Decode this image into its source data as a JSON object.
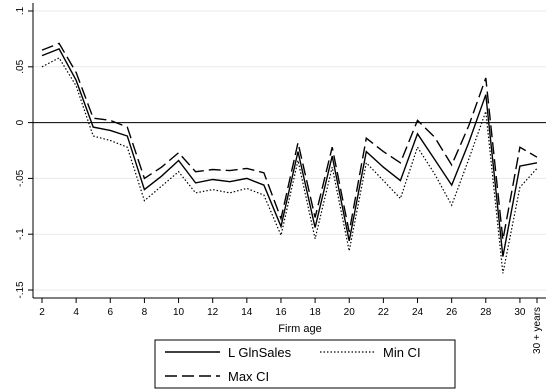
{
  "chart_data": {
    "type": "line",
    "xlabel": "Firm age",
    "ylabel": "",
    "x_ticks": [
      "2",
      "4",
      "6",
      "8",
      "10",
      "12",
      "14",
      "16",
      "18",
      "20",
      "22",
      "24",
      "26",
      "28",
      "30",
      "30 + years"
    ],
    "y_ticks": [
      ".1",
      ".05",
      "0",
      "-.05",
      "-.1",
      "-.15"
    ],
    "y_tick_values": [
      0.1,
      0.05,
      0,
      -0.05,
      -0.1,
      -0.15
    ],
    "ylim": [
      -0.15,
      0.1
    ],
    "grid": true,
    "reference_line_y": 0,
    "legend_placement": "bottom-center",
    "x": [
      2,
      3,
      4,
      5,
      6,
      7,
      8,
      9,
      10,
      11,
      12,
      13,
      14,
      15,
      16,
      17,
      18,
      19,
      20,
      21,
      22,
      23,
      24,
      25,
      26,
      27,
      28,
      29,
      30,
      31
    ],
    "series": [
      {
        "name": "L GlnSales",
        "style": "solid",
        "values": [
          0.06,
          0.066,
          0.038,
          -0.004,
          -0.007,
          -0.012,
          -0.06,
          -0.048,
          -0.034,
          -0.054,
          -0.051,
          -0.053,
          -0.05,
          -0.056,
          -0.093,
          -0.026,
          -0.094,
          -0.03,
          -0.106,
          -0.026,
          -0.04,
          -0.052,
          -0.01,
          -0.033,
          -0.056,
          -0.018,
          0.025,
          -0.12,
          -0.039,
          -0.036
        ]
      },
      {
        "name": "Min CI",
        "style": "dotted",
        "values": [
          0.05,
          0.058,
          0.033,
          -0.012,
          -0.016,
          -0.022,
          -0.07,
          -0.057,
          -0.044,
          -0.063,
          -0.06,
          -0.063,
          -0.059,
          -0.065,
          -0.101,
          -0.034,
          -0.104,
          -0.04,
          -0.115,
          -0.036,
          -0.052,
          -0.068,
          -0.022,
          -0.046,
          -0.074,
          -0.033,
          0.01,
          -0.135,
          -0.058,
          -0.041
        ]
      },
      {
        "name": "Max CI",
        "style": "dashed",
        "values": [
          0.065,
          0.071,
          0.045,
          0.004,
          0.002,
          -0.004,
          -0.05,
          -0.04,
          -0.027,
          -0.044,
          -0.042,
          -0.043,
          -0.041,
          -0.045,
          -0.086,
          -0.018,
          -0.085,
          -0.022,
          -0.098,
          -0.014,
          -0.026,
          -0.036,
          0.002,
          -0.013,
          -0.038,
          -0.003,
          0.04,
          -0.105,
          -0.022,
          -0.031
        ]
      }
    ]
  },
  "legend": {
    "items": [
      {
        "label": "L GlnSales",
        "style": "solid"
      },
      {
        "label": "Min CI",
        "style": "dotted"
      },
      {
        "label": "Max CI",
        "style": "dashed"
      }
    ]
  }
}
